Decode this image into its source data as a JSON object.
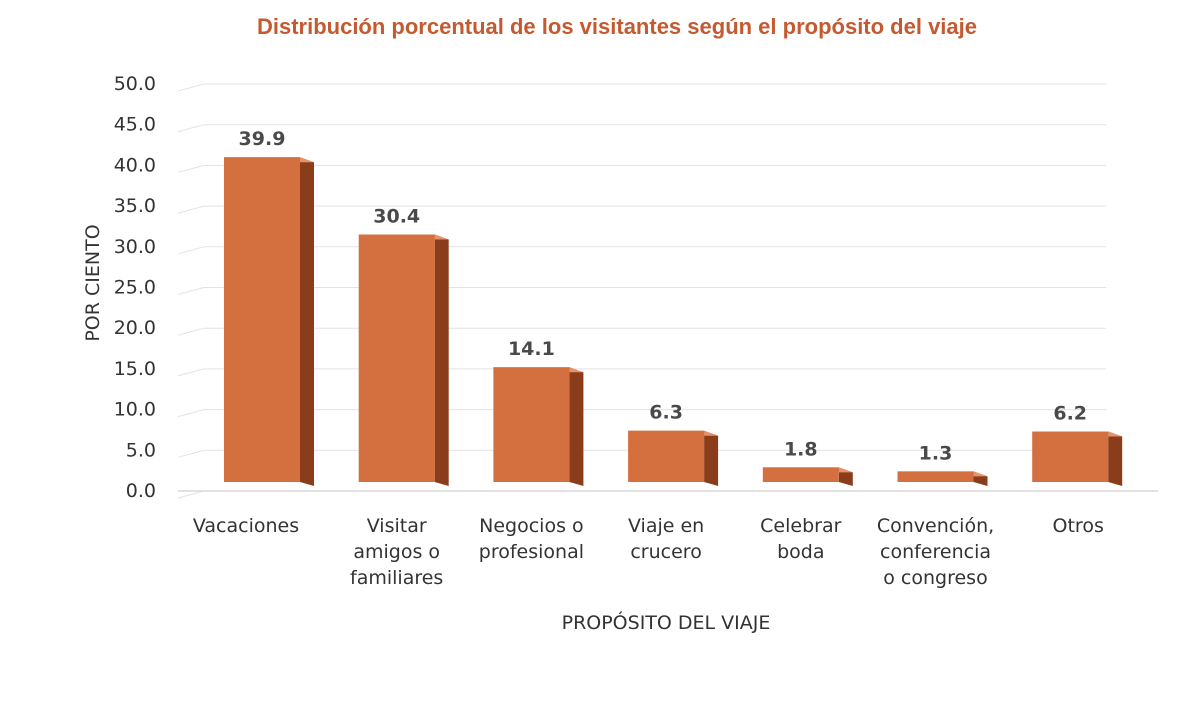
{
  "chart_data": {
    "type": "bar",
    "title": "Distribución porcentual de los visitantes según el propósito del viaje",
    "xlabel": "PROPÓSITO DEL VIAJE",
    "ylabel": "POR CIENTO",
    "ylim": [
      0,
      50
    ],
    "yticks": [
      "0.0",
      "5.0",
      "10.0",
      "15.0",
      "20.0",
      "25.0",
      "30.0",
      "35.0",
      "40.0",
      "45.0",
      "50.0"
    ],
    "categories": [
      [
        "Vacaciones"
      ],
      [
        "Visitar",
        "amigos o",
        "familiares"
      ],
      [
        "Negocios o",
        "profesional"
      ],
      [
        "Viaje en",
        "crucero"
      ],
      [
        "Celebrar",
        "boda"
      ],
      [
        "Convención,",
        "conferencia",
        "o congreso"
      ],
      [
        "Otros"
      ]
    ],
    "values": [
      39.9,
      30.4,
      14.1,
      6.3,
      1.8,
      1.3,
      6.2
    ],
    "value_labels": [
      "39.9",
      "30.4",
      "14.1",
      "6.3",
      "1.8",
      "1.3",
      "6.2"
    ],
    "grid": true,
    "style": "3d-column",
    "colors": {
      "bar_front": "#d4703f",
      "bar_side": "#8a3d1a",
      "bar_top": "#e8916a",
      "title": "#c55a30",
      "grid": "#e3e3e3"
    }
  }
}
